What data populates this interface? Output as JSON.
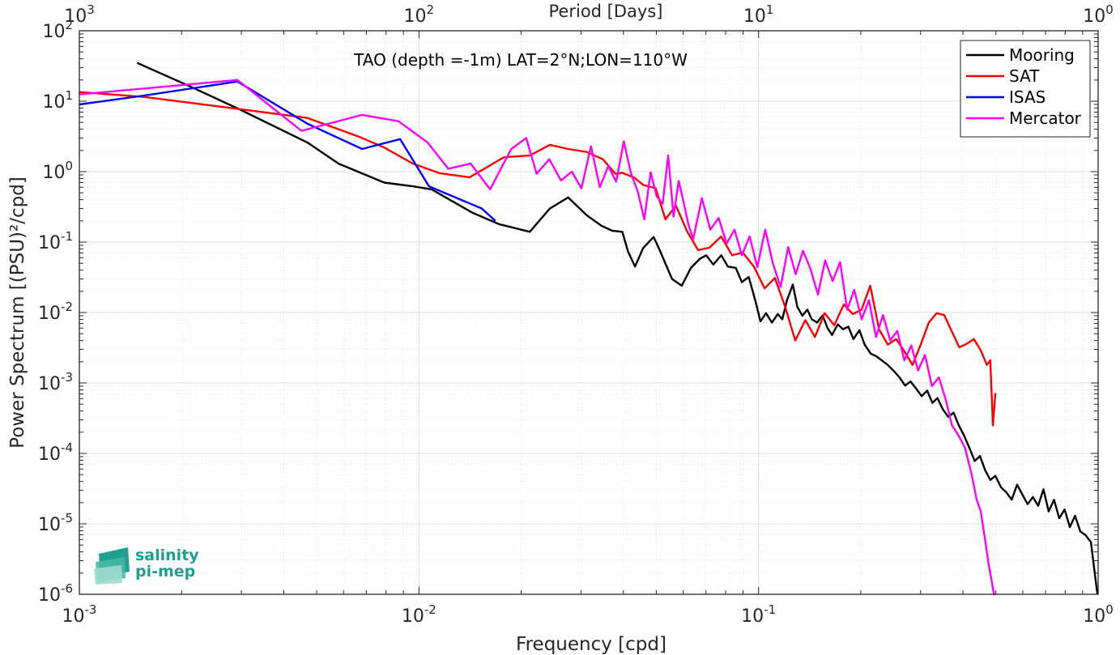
{
  "chart_data": {
    "type": "line",
    "title": "TAO (depth =-1m) LAT=2°N;LON=110°W",
    "xlabel": "Frequency [cpd]",
    "ylabel": "Power Spectrum [(PSU)²/cpd]",
    "top_xlabel": "Period [Days]",
    "xscale": "log",
    "yscale": "log",
    "xlim": [
      0.001,
      1
    ],
    "ylim": [
      1e-06,
      100
    ],
    "x_ticks": [
      {
        "base": "10",
        "exp": "-3"
      },
      {
        "base": "10",
        "exp": "-2"
      },
      {
        "base": "10",
        "exp": "-1"
      },
      {
        "base": "10",
        "exp": "0"
      }
    ],
    "top_ticks": [
      {
        "base": "10",
        "exp": "3"
      },
      {
        "base": "10",
        "exp": "2"
      },
      {
        "base": "10",
        "exp": "1"
      },
      {
        "base": "10",
        "exp": "0"
      }
    ],
    "y_ticks": [
      {
        "base": "10",
        "exp": "-6"
      },
      {
        "base": "10",
        "exp": "-5"
      },
      {
        "base": "10",
        "exp": "-4"
      },
      {
        "base": "10",
        "exp": "-3"
      },
      {
        "base": "10",
        "exp": "-2"
      },
      {
        "base": "10",
        "exp": "-1"
      },
      {
        "base": "10",
        "exp": "0"
      },
      {
        "base": "10",
        "exp": "1"
      },
      {
        "base": "10",
        "exp": "2"
      }
    ],
    "grid": true,
    "legend_position": "top-right",
    "series": [
      {
        "name": "Mooring",
        "color": "#000000",
        "x": [
          0.00148,
          0.00213,
          0.00294,
          0.00469,
          0.0058,
          0.0079,
          0.0096,
          0.0109,
          0.0144,
          0.0172,
          0.0212,
          0.0243,
          0.0275,
          0.0312,
          0.0345,
          0.0371,
          0.0397,
          0.0413,
          0.0433,
          0.0457,
          0.0491,
          0.0511,
          0.0556,
          0.0594,
          0.0632,
          0.0672,
          0.0701,
          0.0736,
          0.0777,
          0.0812,
          0.0857,
          0.0893,
          0.0936,
          0.0981,
          0.1013,
          0.1052,
          0.1095,
          0.1139,
          0.1175,
          0.1213,
          0.1262,
          0.1301,
          0.1346,
          0.1392,
          0.1435,
          0.1487,
          0.1544,
          0.1597,
          0.1646,
          0.1712,
          0.1772,
          0.1839,
          0.1903,
          0.1981,
          0.2053,
          0.2141,
          0.2219,
          0.2305,
          0.2402,
          0.2495,
          0.2601,
          0.2701,
          0.2803,
          0.2912,
          0.3023,
          0.3136,
          0.3251,
          0.3363,
          0.3492,
          0.3619,
          0.3753,
          0.3889,
          0.4027,
          0.4176,
          0.4331,
          0.4488,
          0.4645,
          0.4811,
          0.4982,
          0.5176,
          0.5366,
          0.5567,
          0.5772,
          0.5983,
          0.6198,
          0.6424,
          0.6657,
          0.6901,
          0.7151,
          0.7413,
          0.7684,
          0.7965,
          0.8254,
          0.8551,
          0.8862,
          0.9182,
          0.9521,
          0.98,
          0.995
        ],
        "y": [
          35,
          16,
          7.8,
          2.6,
          1.3,
          0.7,
          0.62,
          0.56,
          0.26,
          0.18,
          0.14,
          0.3,
          0.43,
          0.24,
          0.17,
          0.145,
          0.14,
          0.073,
          0.045,
          0.082,
          0.118,
          0.078,
          0.03,
          0.024,
          0.043,
          0.058,
          0.065,
          0.048,
          0.065,
          0.045,
          0.043,
          0.027,
          0.032,
          0.014,
          0.0075,
          0.0098,
          0.0072,
          0.0095,
          0.008,
          0.015,
          0.025,
          0.012,
          0.009,
          0.011,
          0.008,
          0.0072,
          0.0091,
          0.006,
          0.0048,
          0.0068,
          0.0058,
          0.0063,
          0.0042,
          0.0056,
          0.0035,
          0.0026,
          0.0024,
          0.0021,
          0.0018,
          0.0015,
          0.0012,
          0.00092,
          0.00105,
          0.00083,
          0.00065,
          0.00078,
          0.00052,
          0.00061,
          0.00042,
          0.00033,
          0.00038,
          0.00025,
          0.00018,
          0.00012,
          7.8e-05,
          9.2e-05,
          5.8e-05,
          4.2e-05,
          4.8e-05,
          3.3e-05,
          2.8e-05,
          2.2e-05,
          3.6e-05,
          2.6e-05,
          1.9e-05,
          2.4e-05,
          1.8e-05,
          3.1e-05,
          1.5e-05,
          2.2e-05,
          1.2e-05,
          1.6e-05,
          9e-06,
          1.3e-05,
          7.8e-06,
          6.9e-06,
          5.5e-06,
          1.8e-06,
          9e-07
        ]
      },
      {
        "name": "SAT",
        "color": "#ff0000",
        "x": [
          0.001,
          0.00155,
          0.00292,
          0.00469,
          0.0067,
          0.0079,
          0.0096,
          0.0115,
          0.0141,
          0.0178,
          0.0212,
          0.0243,
          0.0275,
          0.0312,
          0.0348,
          0.0379,
          0.0397,
          0.0431,
          0.0457,
          0.0498,
          0.0532,
          0.0571,
          0.0617,
          0.0664,
          0.0716,
          0.0776,
          0.0836,
          0.0898,
          0.0969,
          0.1042,
          0.1117,
          0.1198,
          0.1283,
          0.1373,
          0.1466,
          0.1565,
          0.1671,
          0.1782,
          0.1895,
          0.2011,
          0.2133,
          0.2263,
          0.2401,
          0.2543,
          0.2689,
          0.2841,
          0.3002,
          0.3172,
          0.3345,
          0.3522,
          0.3708,
          0.3902,
          0.4106,
          0.4305,
          0.4512,
          0.4702,
          0.4811,
          0.4901,
          0.4982
        ],
        "y": [
          13.5,
          11.5,
          7.8,
          5.8,
          3.1,
          2.2,
          1.3,
          0.95,
          0.83,
          1.6,
          1.7,
          2.4,
          2.1,
          1.9,
          1.5,
          0.93,
          0.96,
          0.82,
          0.65,
          0.58,
          0.21,
          0.33,
          0.14,
          0.077,
          0.083,
          0.12,
          0.065,
          0.071,
          0.045,
          0.022,
          0.031,
          0.012,
          0.004,
          0.0078,
          0.0045,
          0.0098,
          0.0066,
          0.013,
          0.0095,
          0.011,
          0.024,
          0.0058,
          0.0035,
          0.0042,
          0.0028,
          0.0018,
          0.0035,
          0.0072,
          0.0098,
          0.0092,
          0.0054,
          0.0032,
          0.0036,
          0.0042,
          0.0029,
          0.0018,
          0.0021,
          0.00025,
          0.00072
        ]
      },
      {
        "name": "ISAS",
        "color": "#0000ff",
        "x": [
          0.001,
          0.00155,
          0.00292,
          0.00469,
          0.0068,
          0.0088,
          0.0107,
          0.0153,
          0.0168
        ],
        "y": [
          9,
          12,
          19,
          4.8,
          2.1,
          2.9,
          0.62,
          0.3,
          0.2
        ]
      },
      {
        "name": "Mercator",
        "color": "#ff00ff",
        "x": [
          0.001,
          0.00292,
          0.00451,
          0.0068,
          0.0087,
          0.0106,
          0.0122,
          0.0142,
          0.0162,
          0.0187,
          0.0207,
          0.0222,
          0.0242,
          0.0262,
          0.0282,
          0.0301,
          0.0321,
          0.0341,
          0.0361,
          0.0381,
          0.0401,
          0.0421,
          0.0441,
          0.0461,
          0.0481,
          0.0501,
          0.0522,
          0.0542,
          0.0562,
          0.0582,
          0.0601,
          0.0621,
          0.0642,
          0.0681,
          0.0721,
          0.0763,
          0.0805,
          0.0849,
          0.0893,
          0.0941,
          0.0992,
          0.1046,
          0.1102,
          0.1161,
          0.1223,
          0.1286,
          0.1352,
          0.1421,
          0.1496,
          0.1571,
          0.1653,
          0.1739,
          0.1824,
          0.1913,
          0.2012,
          0.2114,
          0.2218,
          0.2326,
          0.2442,
          0.2562,
          0.2688,
          0.2818,
          0.2951,
          0.3092,
          0.3241,
          0.3396,
          0.3553,
          0.3712,
          0.3881,
          0.4054,
          0.4235,
          0.4388,
          0.4512,
          0.4642,
          0.4753,
          0.4862,
          0.4932,
          0.4982
        ],
        "y": [
          12.5,
          20,
          3.8,
          6.4,
          5.2,
          2.6,
          1.1,
          1.3,
          0.56,
          2.1,
          3,
          0.93,
          1.5,
          0.75,
          1,
          0.58,
          2.3,
          0.6,
          1.2,
          0.72,
          2.7,
          0.95,
          0.52,
          0.21,
          0.98,
          0.45,
          0.35,
          1.7,
          0.23,
          0.74,
          0.38,
          0.18,
          0.11,
          0.42,
          0.15,
          0.22,
          0.095,
          0.15,
          0.065,
          0.12,
          0.044,
          0.15,
          0.05,
          0.023,
          0.085,
          0.035,
          0.075,
          0.042,
          0.018,
          0.055,
          0.028,
          0.052,
          0.011,
          0.021,
          0.008,
          0.015,
          0.0045,
          0.0092,
          0.004,
          0.0055,
          0.0021,
          0.0034,
          0.0015,
          0.0025,
          0.0009,
          0.0012,
          0.0006,
          0.00025,
          0.00018,
          0.00012,
          5.2e-05,
          2.2e-05,
          1.5e-05,
          6.2e-06,
          2.8e-06,
          1.5e-06,
          9e-07,
          5e-07
        ]
      }
    ],
    "logo": {
      "line1": "salinity",
      "line2": "pi-mep"
    }
  }
}
